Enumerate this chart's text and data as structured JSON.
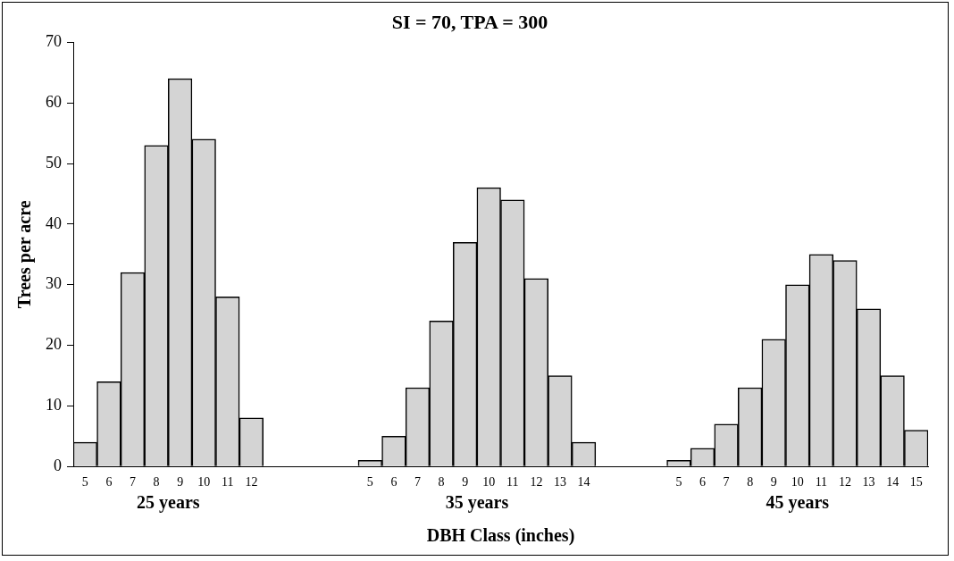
{
  "chart_data": {
    "type": "bar",
    "title": "SI = 70, TPA = 300",
    "xlabel": "DBH Class (inches)",
    "ylabel": "Trees per acre",
    "categories": [
      "5",
      "6",
      "7",
      "8",
      "9",
      "10",
      "11",
      "12",
      null,
      null,
      null,
      null,
      "5",
      "6",
      "7",
      "8",
      "9",
      "10",
      "11",
      "12",
      "13",
      "14",
      null,
      null,
      null,
      "5",
      "6",
      "7",
      "8",
      "9",
      "10",
      "11",
      "12",
      "13",
      "14",
      "15"
    ],
    "values": [
      4,
      14,
      32,
      53,
      64,
      54,
      28,
      8,
      null,
      null,
      null,
      null,
      1,
      5,
      13,
      24,
      37,
      46,
      44,
      31,
      15,
      4,
      null,
      null,
      null,
      1,
      3,
      7,
      13,
      21,
      30,
      35,
      34,
      26,
      15,
      6
    ],
    "color": "#d4d4d4",
    "annotations": [
      "25 years",
      "35 years",
      "45 years"
    ],
    "ylim": [
      0,
      70
    ],
    "yticks": [
      0,
      10,
      20,
      30,
      40,
      50,
      60,
      70
    ],
    "grid": false,
    "legend": false
  }
}
